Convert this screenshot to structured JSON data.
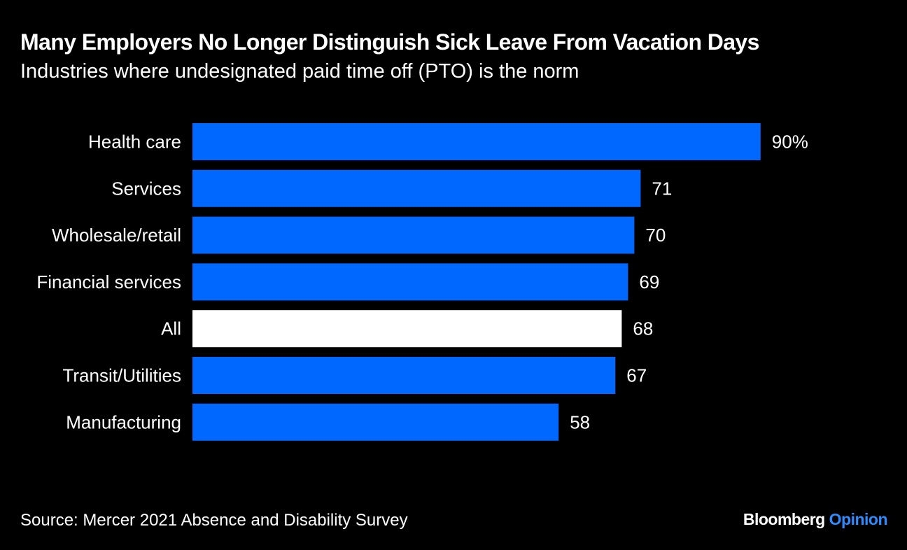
{
  "chart_data": {
    "type": "bar",
    "orientation": "horizontal",
    "title": "Many Employers No Longer Distinguish Sick Leave From Vacation Days",
    "subtitle": "Industries where undesignated paid time off (PTO) is the norm",
    "categories": [
      "Health care",
      "Services",
      "Wholesale/retail",
      "Financial services",
      "All",
      "Transit/Utilities",
      "Manufacturing"
    ],
    "values": [
      90,
      71,
      70,
      69,
      68,
      67,
      58
    ],
    "value_labels": [
      "90%",
      "71",
      "70",
      "69",
      "68",
      "67",
      "58"
    ],
    "highlight_category": "All",
    "unit": "%",
    "xlim": [
      0,
      100
    ],
    "xlabel": "",
    "ylabel": "",
    "grid": false
  },
  "colors": {
    "background": "#000000",
    "bar": "#0068ff",
    "highlight_bar": "#ffffff",
    "text": "#ffffff",
    "brand_accent": "#2f8cff"
  },
  "footer": {
    "source": "Source: Mercer 2021 Absence and Disability Survey",
    "brand_name": "Bloomberg",
    "brand_section": "Opinion"
  }
}
